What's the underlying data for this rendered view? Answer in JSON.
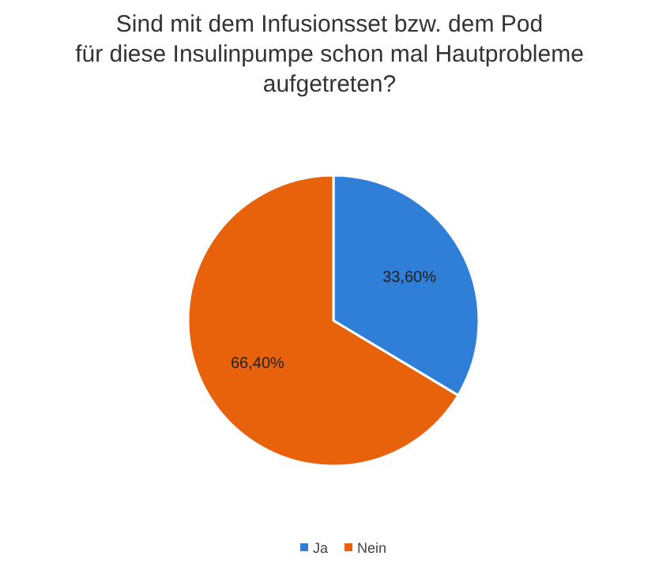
{
  "chart_data": {
    "type": "pie",
    "title": "Sind mit dem Infusionsset bzw. dem Pod\nfür diese Insulinpumpe schon mal Hautprobleme\naufgetreten?",
    "categories": [
      "Ja",
      "Nein"
    ],
    "values": [
      33.6,
      66.4
    ],
    "colors": [
      "#2f7ed8",
      "#e8620c"
    ],
    "value_labels": [
      "33,60%",
      "66,40%"
    ],
    "legend": "bottom"
  }
}
